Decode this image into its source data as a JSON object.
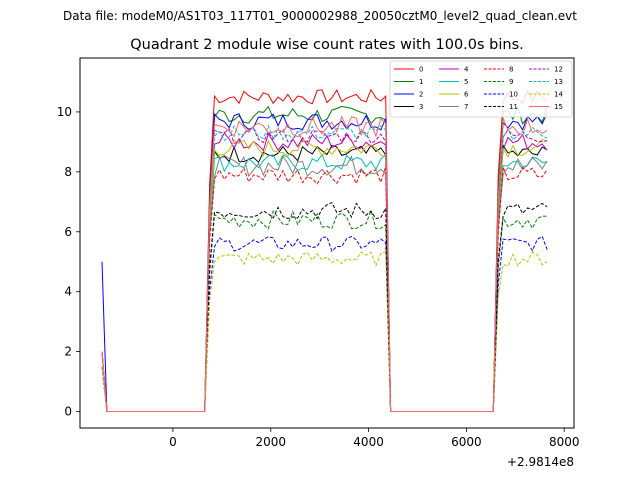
{
  "suptitle": "Data file: modeM0/AS1T03_117T01_9000002988_20050cztM0_level2_quad_clean.evt",
  "chart_data": {
    "type": "line",
    "title": "Quadrant 2 module wise count rates with 100.0s bins.",
    "xlabel": "",
    "ylabel": "",
    "x_offset_label": "+2.9814e8",
    "xlim": [
      -1900,
      8200
    ],
    "ylim": [
      -0.55,
      11.8
    ],
    "x_ticks": [
      0,
      2000,
      4000,
      6000,
      8000
    ],
    "y_ticks": [
      0,
      2,
      4,
      6,
      8,
      10
    ],
    "x_tick_labels": [
      "0",
      "2000",
      "4000",
      "6000",
      "8000"
    ],
    "y_tick_labels": [
      "0",
      "2",
      "4",
      "6",
      "8",
      "10"
    ],
    "grid": false,
    "legend_position": "top-right",
    "segments": [
      {
        "x_start": -1450,
        "x_end": -1350
      },
      {
        "x_start": -1250,
        "x_end": 650
      },
      {
        "x_start": 750,
        "x_end": 4350
      },
      {
        "x_start": 4450,
        "x_end": 6550
      },
      {
        "x_start": 6650,
        "x_end": 7650
      }
    ],
    "series": [
      {
        "name": "0",
        "color": "#ff0000",
        "dash": "solid",
        "start": 2.0,
        "level": 10.5,
        "noise": 0.25
      },
      {
        "name": "1",
        "color": "#008000",
        "dash": "solid",
        "start": 2.0,
        "level": 9.9,
        "noise": 0.3
      },
      {
        "name": "2",
        "color": "#0000ff",
        "dash": "solid",
        "start": 5.0,
        "level": 9.7,
        "noise": 0.3
      },
      {
        "name": "3",
        "color": "#000000",
        "dash": "solid",
        "start": 2.0,
        "level": 8.6,
        "noise": 0.3
      },
      {
        "name": "4",
        "color": "#bf00bf",
        "dash": "solid",
        "start": 2.0,
        "level": 9.0,
        "noise": 0.3
      },
      {
        "name": "5",
        "color": "#00bfbf",
        "dash": "solid",
        "start": 2.0,
        "level": 8.3,
        "noise": 0.3
      },
      {
        "name": "6",
        "color": "#bfbf00",
        "dash": "solid",
        "start": 2.0,
        "level": 8.8,
        "noise": 0.3
      },
      {
        "name": "7",
        "color": "#808080",
        "dash": "solid",
        "start": 2.0,
        "level": 8.2,
        "noise": 0.35
      },
      {
        "name": "8",
        "color": "#ff0000",
        "dash": "dashed",
        "start": 1.5,
        "level": 7.9,
        "noise": 0.3
      },
      {
        "name": "9",
        "color": "#008000",
        "dash": "dashed",
        "start": 1.5,
        "level": 6.4,
        "noise": 0.3
      },
      {
        "name": "10",
        "color": "#0000ff",
        "dash": "dashed",
        "start": 1.5,
        "level": 5.6,
        "noise": 0.25
      },
      {
        "name": "11",
        "color": "#000000",
        "dash": "dashed",
        "start": 1.5,
        "level": 6.7,
        "noise": 0.3
      },
      {
        "name": "12",
        "color": "#bf00bf",
        "dash": "dashed",
        "start": 1.5,
        "level": 9.2,
        "noise": 0.25
      },
      {
        "name": "13",
        "color": "#00bfbf",
        "dash": "dashed",
        "start": 1.5,
        "level": 9.3,
        "noise": 0.25
      },
      {
        "name": "14",
        "color": "#bfbf00",
        "dash": "dashed",
        "start": 1.5,
        "level": 5.1,
        "noise": 0.25
      },
      {
        "name": "15",
        "color": "#ff6666",
        "dash": "solid",
        "start": 2.0,
        "level": 9.5,
        "noise": 0.35
      }
    ]
  }
}
